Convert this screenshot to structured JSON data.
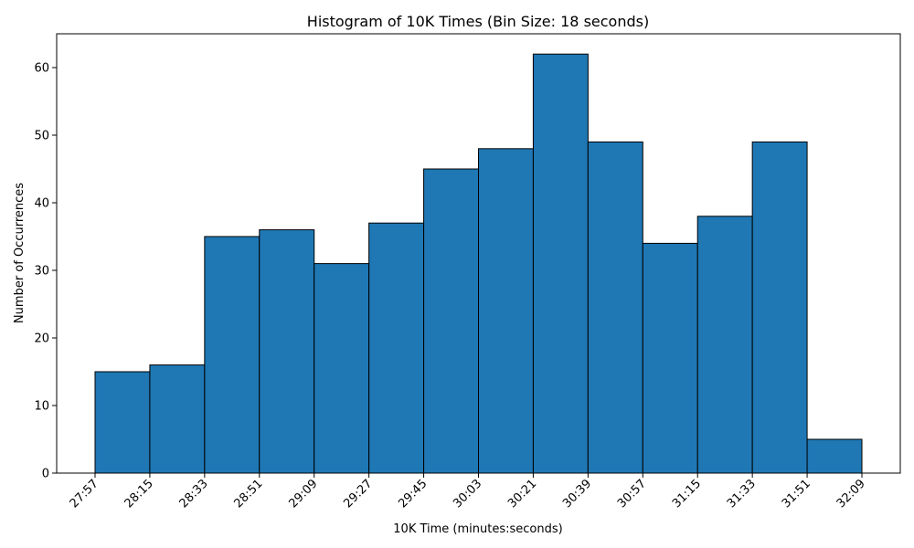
{
  "chart_data": {
    "type": "bar",
    "title": "Histogram of 10K Times (Bin Size: 18 seconds)",
    "xlabel": "10K Time (minutes:seconds)",
    "ylabel": "Number of Occurrences",
    "bin_edges": [
      "27:57",
      "28:15",
      "28:33",
      "28:51",
      "29:09",
      "29:27",
      "29:45",
      "30:03",
      "30:21",
      "30:39",
      "30:57",
      "31:15",
      "31:33",
      "31:51",
      "32:09"
    ],
    "values": [
      15,
      16,
      35,
      36,
      31,
      37,
      45,
      48,
      62,
      49,
      34,
      38,
      49,
      5
    ],
    "yticks": [
      0,
      10,
      20,
      30,
      40,
      50,
      60
    ],
    "ylim": [
      0,
      65
    ],
    "grid": false,
    "legend": false,
    "colors": {
      "bar_fill": "#1f77b4",
      "bar_edge": "#000000"
    }
  }
}
